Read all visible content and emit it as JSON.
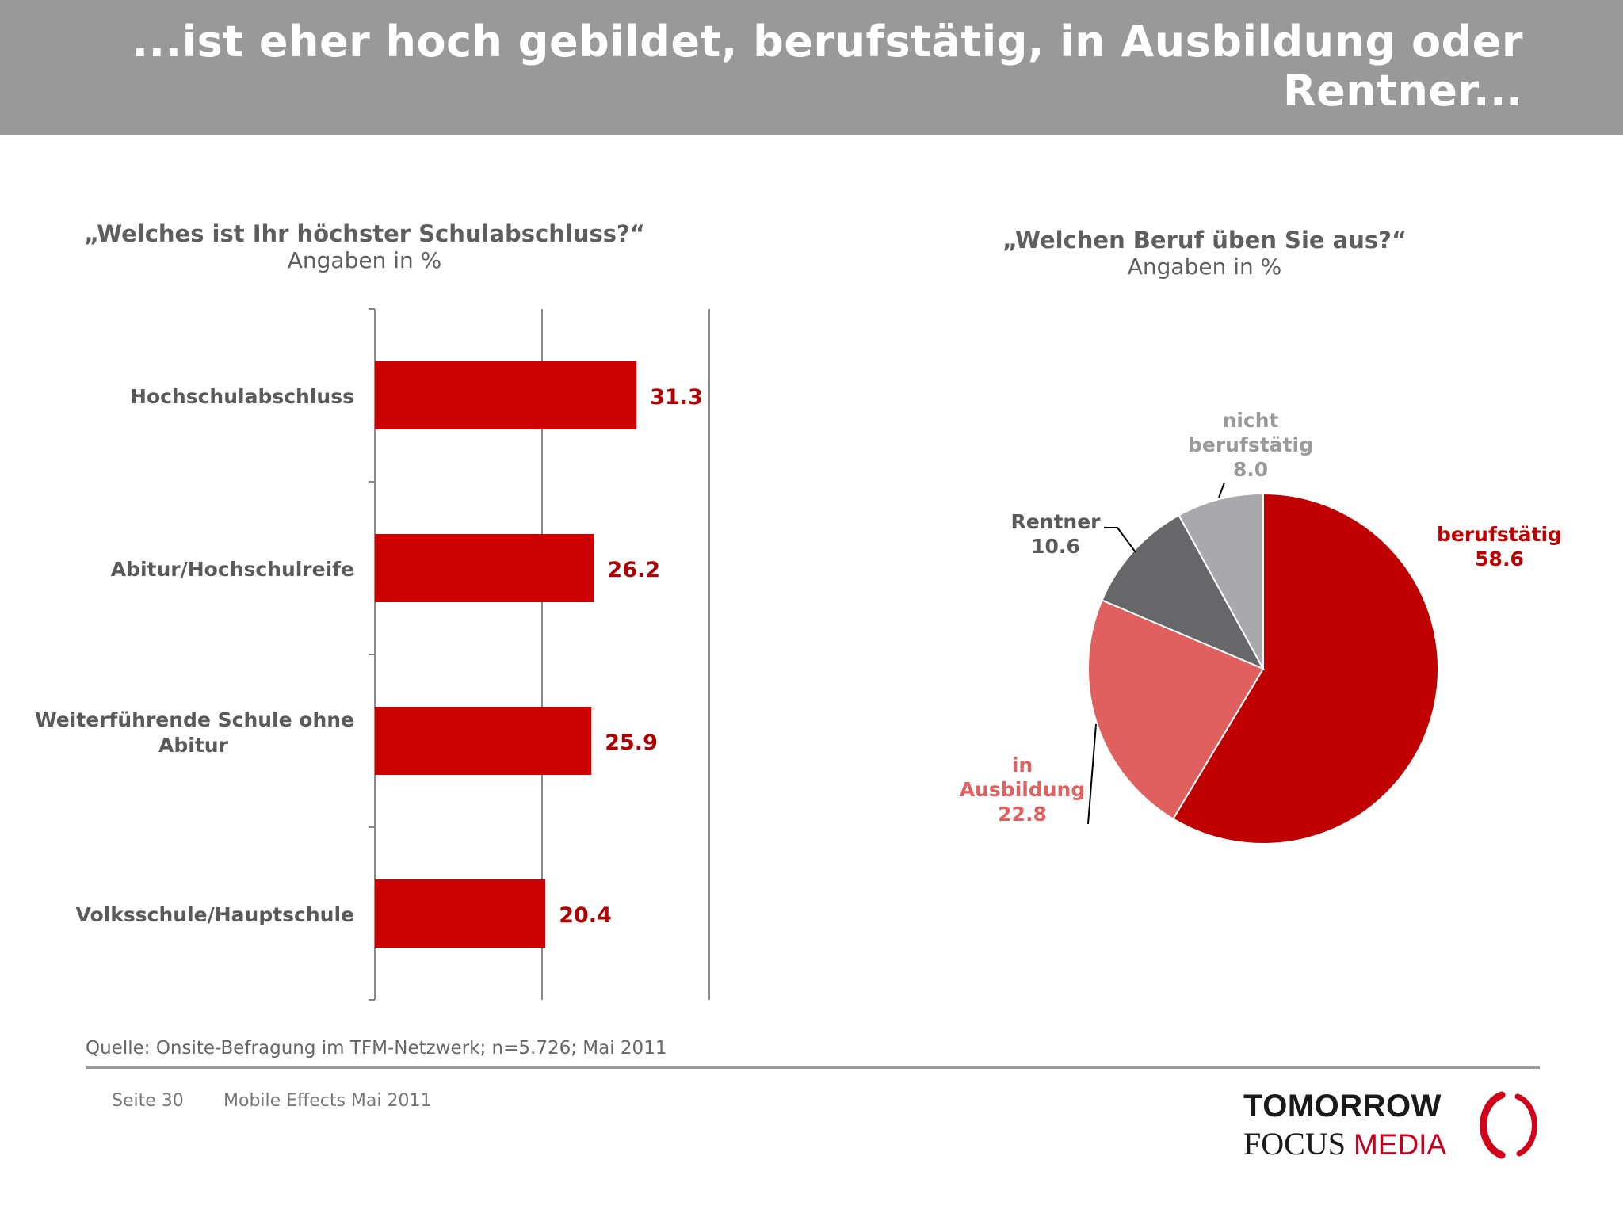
{
  "header": {
    "title": "...ist eher hoch gebildet, berufstätig, in Ausbildung oder Rentner..."
  },
  "colors": {
    "bar": "#cc0000",
    "bar_label": "#b00000",
    "pie_berufstaetig": "#c00000",
    "pie_ausbildung": "#e06060",
    "pie_rentner": "#67676a",
    "pie_nicht": "#a9a9ab"
  },
  "chart_data": [
    {
      "type": "bar",
      "orientation": "horizontal",
      "title": "„Welches ist Ihr höchster Schulabschluss?“",
      "subtitle": "Angaben in %",
      "categories": [
        "Hochschulabschluss",
        "Abitur/Hochschulreife",
        "Weiterführende Schule ohne Abitur",
        "Volksschule/Hauptschule"
      ],
      "values": [
        31.3,
        26.2,
        25.9,
        20.4
      ],
      "value_labels": [
        "31.3",
        "26.2",
        "25.9",
        "20.4"
      ],
      "xlim": [
        0,
        40
      ],
      "grid": true
    },
    {
      "type": "pie",
      "title": "„Welchen Beruf üben Sie aus?“",
      "subtitle": "Angaben in %",
      "slices": [
        {
          "label": "berufstätig",
          "value": 58.6,
          "value_label": "58.6"
        },
        {
          "label": "in Ausbildung",
          "value": 22.8,
          "value_label": "22.8"
        },
        {
          "label": "Rentner",
          "value": 10.6,
          "value_label": "10.6"
        },
        {
          "label": "nicht berufstätig",
          "value": 8.0,
          "value_label": "8.0"
        }
      ]
    }
  ],
  "footer": {
    "source": "Quelle: Onsite-Befragung im TFM-Netzwerk; n=5.726; Mai 2011",
    "page": "Seite 30",
    "document": "Mobile Effects Mai 2011",
    "logo_line1": "TOMORROW",
    "logo_focus": "FOCUS",
    "logo_media": "MEDIA"
  }
}
